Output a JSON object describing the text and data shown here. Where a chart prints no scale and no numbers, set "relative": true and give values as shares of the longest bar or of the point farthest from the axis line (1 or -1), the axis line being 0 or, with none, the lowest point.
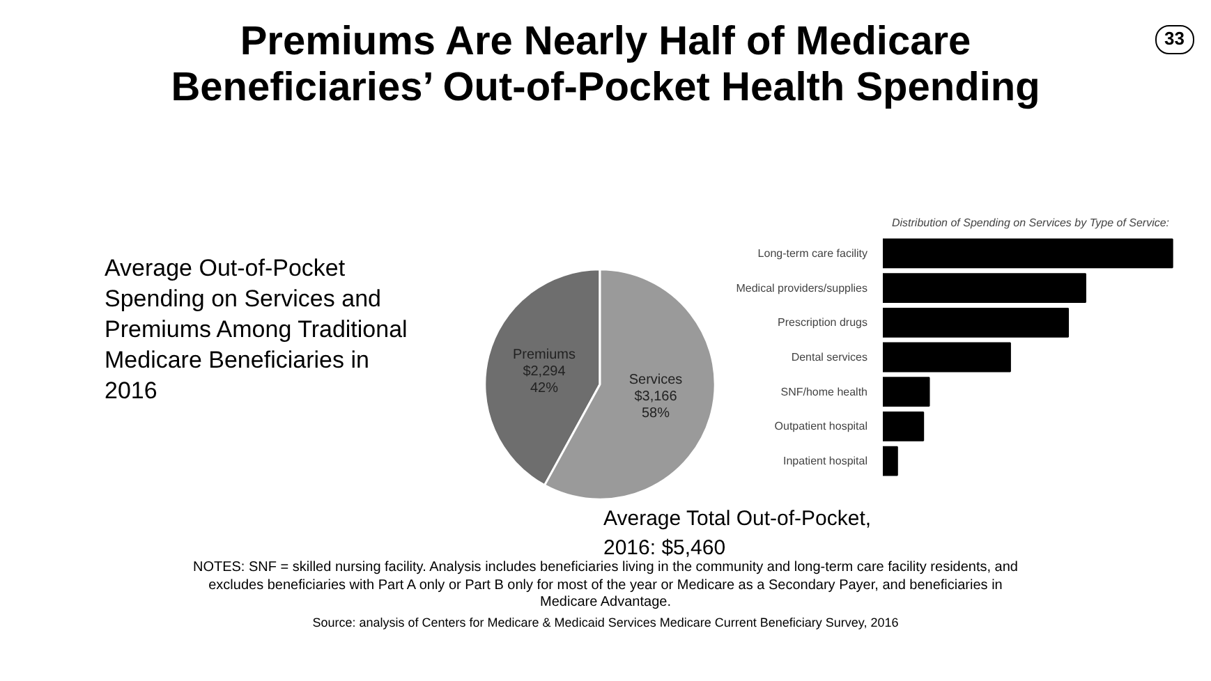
{
  "chart_data": [
    {
      "type": "pie",
      "title": "Premiums Are Nearly Half of Medicare Beneficiaries’ Out-of-Pocket Health Spending",
      "subtitle": "Average Out-of-Pocket Spending on Services and Premiums Among Traditional Medicare Beneficiaries in 2016",
      "categories": [
        "Premiums",
        "Services"
      ],
      "values": [
        2294,
        3166
      ],
      "colors": [
        "#6e6e6e",
        "#9a9a9a"
      ],
      "value_labels": [
        "$2,294\n42%",
        "$3,166\n58%"
      ],
      "annotations": [
        "Average Total Out-of-Pocket, 2016: $5,460",
        "NOTES: SNF = skilled nursing facility. Analysis includes beneficiaries living in the community and long-term care facility residents, and excludes beneficiaries with Part A only or Part B only for most of the year or Medicare as a Secondary Payer, and beneficiaries in Medicare Advantage.",
        "Source: analysis of Centers for Medicare & Medicaid Services Medicare Current Beneficiary Survey, 2016",
        "33"
      ]
    },
    {
      "type": "bar",
      "orientation": "horizontal",
      "relative": true,
      "title": "Distribution of Spending on Services by Type of Service:",
      "categories": [
        "Long-term care facility",
        "Medical providers/supplies",
        "Prescription drugs",
        "Dental services",
        "SNF/home health",
        "Outpatient hospital",
        "Inpatient hospital"
      ],
      "values": [
        1,
        0.7,
        0.64,
        0.44,
        0.16,
        0.14,
        0.05
      ],
      "color": "#000000"
    }
  ]
}
